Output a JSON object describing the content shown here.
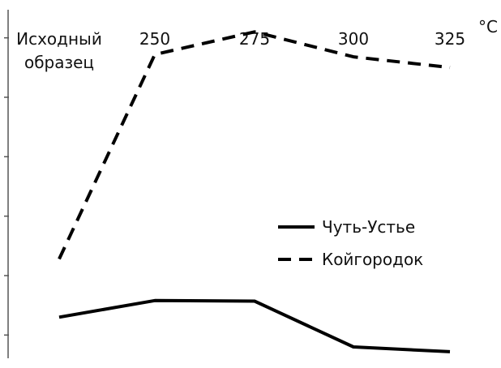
{
  "chart_data": {
    "type": "line",
    "x_label_position": "top",
    "categories": [
      [
        "Исходный",
        "образец"
      ],
      [
        "250"
      ],
      [
        "275"
      ],
      [
        "300"
      ],
      [
        "325"
      ]
    ],
    "xlabel": "°С",
    "ylabel": "",
    "ylim": [
      0,
      6
    ],
    "y_ticks": [
      0.5,
      1.5,
      2.5,
      3.5,
      4.5,
      5.5
    ],
    "y_tick_labels_shown": false,
    "grid": false,
    "legend_position": "lower-right",
    "series": [
      {
        "name": "Чуть-Устье",
        "style": "solid",
        "color": "#000000",
        "values": [
          0.8,
          1.08,
          1.07,
          0.3,
          0.22
        ]
      },
      {
        "name": "Койгородок",
        "style": "dashed",
        "color": "#000000",
        "values": [
          1.78,
          5.22,
          5.6,
          5.18,
          5.0
        ]
      }
    ]
  }
}
